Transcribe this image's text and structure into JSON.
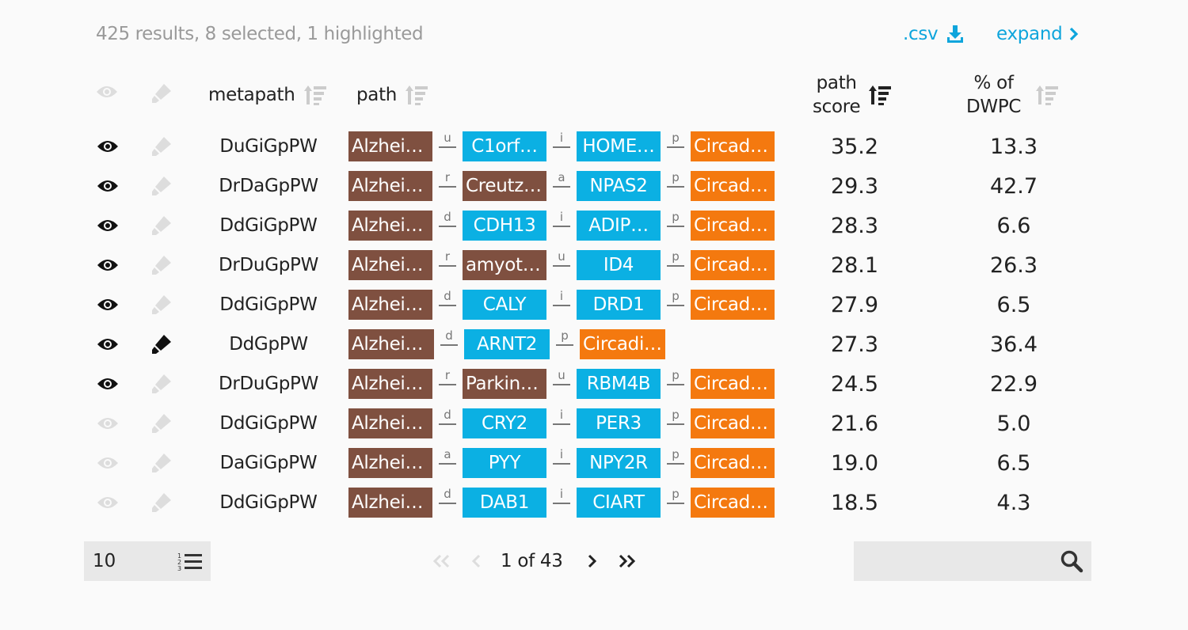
{
  "summary": "425 results, 8 selected, 1 highlighted",
  "csv_label": ".csv",
  "expand_label": "expand",
  "columns": {
    "metapath": "metapath",
    "path": "path",
    "score_line1": "path",
    "score_line2": "score",
    "dwpc_line1": "% of",
    "dwpc_line2": "DWPC"
  },
  "icons": {
    "visible": "eye-icon",
    "highlight": "highlighter-icon",
    "sort": "sort-icon",
    "download": "download-icon",
    "expand": "chevron-right-icon",
    "search": "search-icon",
    "rows_per_page": "numbered-list-icon"
  },
  "colors": {
    "accent": "#0ea5dc",
    "disease": "#7f5040",
    "gene": "#0bb0e3",
    "pathway": "#f4790f",
    "input_bg": "#e8e8e8"
  },
  "rows": [
    {
      "visible": true,
      "highlighted": false,
      "metapath": "DuGiGpPW",
      "nodes": [
        {
          "label": "Alzhei…",
          "type": "disease"
        },
        {
          "label": "C1orf…",
          "type": "gene"
        },
        {
          "label": "HOME…",
          "type": "gene"
        },
        {
          "label": "Circad…",
          "type": "pathway"
        }
      ],
      "edges": [
        "u",
        "i",
        "p"
      ],
      "score": "35.2",
      "dwpc": "13.3"
    },
    {
      "visible": true,
      "highlighted": false,
      "metapath": "DrDaGpPW",
      "nodes": [
        {
          "label": "Alzhei…",
          "type": "disease"
        },
        {
          "label": "Creutz…",
          "type": "disease"
        },
        {
          "label": "NPAS2",
          "type": "gene"
        },
        {
          "label": "Circad…",
          "type": "pathway"
        }
      ],
      "edges": [
        "r",
        "a",
        "p"
      ],
      "score": "29.3",
      "dwpc": "42.7"
    },
    {
      "visible": true,
      "highlighted": false,
      "metapath": "DdGiGpPW",
      "nodes": [
        {
          "label": "Alzhei…",
          "type": "disease"
        },
        {
          "label": "CDH13",
          "type": "gene"
        },
        {
          "label": "ADIP…",
          "type": "gene"
        },
        {
          "label": "Circad…",
          "type": "pathway"
        }
      ],
      "edges": [
        "d",
        "i",
        "p"
      ],
      "score": "28.3",
      "dwpc": "6.6"
    },
    {
      "visible": true,
      "highlighted": false,
      "metapath": "DrDuGpPW",
      "nodes": [
        {
          "label": "Alzhei…",
          "type": "disease"
        },
        {
          "label": "amyot…",
          "type": "disease"
        },
        {
          "label": "ID4",
          "type": "gene"
        },
        {
          "label": "Circad…",
          "type": "pathway"
        }
      ],
      "edges": [
        "r",
        "u",
        "p"
      ],
      "score": "28.1",
      "dwpc": "26.3"
    },
    {
      "visible": true,
      "highlighted": false,
      "metapath": "DdGiGpPW",
      "nodes": [
        {
          "label": "Alzhei…",
          "type": "disease"
        },
        {
          "label": "CALY",
          "type": "gene"
        },
        {
          "label": "DRD1",
          "type": "gene"
        },
        {
          "label": "Circad…",
          "type": "pathway"
        }
      ],
      "edges": [
        "d",
        "i",
        "p"
      ],
      "score": "27.9",
      "dwpc": "6.5"
    },
    {
      "visible": true,
      "highlighted": true,
      "metapath": "DdGpPW",
      "nodes": [
        {
          "label": "Alzhei…",
          "type": "disease"
        },
        {
          "label": "ARNT2",
          "type": "gene"
        },
        {
          "label": "Circadi…",
          "type": "pathway"
        }
      ],
      "edges": [
        "d",
        "p"
      ],
      "score": "27.3",
      "dwpc": "36.4"
    },
    {
      "visible": true,
      "highlighted": false,
      "metapath": "DrDuGpPW",
      "nodes": [
        {
          "label": "Alzhei…",
          "type": "disease"
        },
        {
          "label": "Parkin…",
          "type": "disease"
        },
        {
          "label": "RBM4B",
          "type": "gene"
        },
        {
          "label": "Circad…",
          "type": "pathway"
        }
      ],
      "edges": [
        "r",
        "u",
        "p"
      ],
      "score": "24.5",
      "dwpc": "22.9"
    },
    {
      "visible": false,
      "highlighted": false,
      "metapath": "DdGiGpPW",
      "nodes": [
        {
          "label": "Alzhei…",
          "type": "disease"
        },
        {
          "label": "CRY2",
          "type": "gene"
        },
        {
          "label": "PER3",
          "type": "gene"
        },
        {
          "label": "Circad…",
          "type": "pathway"
        }
      ],
      "edges": [
        "d",
        "i",
        "p"
      ],
      "score": "21.6",
      "dwpc": "5.0"
    },
    {
      "visible": false,
      "highlighted": false,
      "metapath": "DaGiGpPW",
      "nodes": [
        {
          "label": "Alzhei…",
          "type": "disease"
        },
        {
          "label": "PYY",
          "type": "gene"
        },
        {
          "label": "NPY2R",
          "type": "gene"
        },
        {
          "label": "Circad…",
          "type": "pathway"
        }
      ],
      "edges": [
        "a",
        "i",
        "p"
      ],
      "score": "19.0",
      "dwpc": "6.5"
    },
    {
      "visible": false,
      "highlighted": false,
      "metapath": "DdGiGpPW",
      "nodes": [
        {
          "label": "Alzhei…",
          "type": "disease"
        },
        {
          "label": "DAB1",
          "type": "gene"
        },
        {
          "label": "CIART",
          "type": "gene"
        },
        {
          "label": "Circad…",
          "type": "pathway"
        }
      ],
      "edges": [
        "d",
        "i",
        "p"
      ],
      "score": "18.5",
      "dwpc": "4.3"
    }
  ],
  "pagination": {
    "per_page": "10",
    "page_text": "1 of 43"
  },
  "search": {
    "placeholder": ""
  }
}
